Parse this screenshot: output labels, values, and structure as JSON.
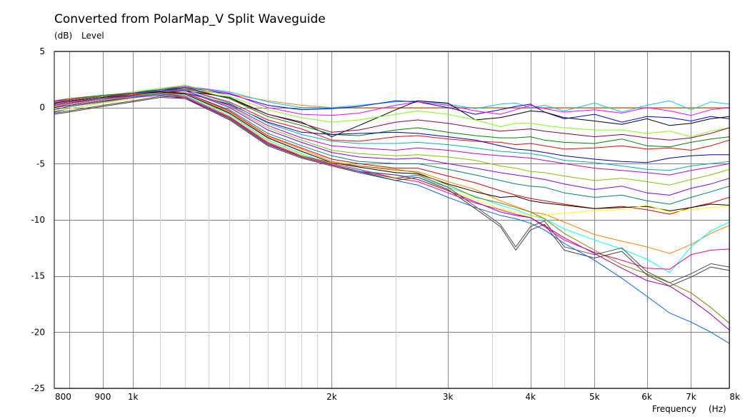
{
  "chart_data": {
    "type": "line",
    "title": "Converted from PolarMap_V Split Waveguide",
    "ylabel": "Level",
    "yunit": "(dB)",
    "xlabel": "Frequency",
    "xunit": "(Hz)",
    "xscale": "log",
    "xlim": [
      760,
      8000
    ],
    "ylim": [
      -25,
      5
    ],
    "grid": true,
    "legend": "none",
    "x_ticks": [
      {
        "value": 800,
        "label": "800"
      },
      {
        "value": 900,
        "label": "900"
      },
      {
        "value": 1000,
        "label": "1k"
      },
      {
        "value": 2000,
        "label": "2k"
      },
      {
        "value": 3000,
        "label": "3k"
      },
      {
        "value": 4000,
        "label": "4k"
      },
      {
        "value": 5000,
        "label": "5k"
      },
      {
        "value": 6000,
        "label": "6k"
      },
      {
        "value": 7000,
        "label": "7k"
      },
      {
        "value": 8000,
        "label": "8k"
      }
    ],
    "x_minor_ticks": [
      1100,
      1200,
      1300,
      1400,
      1500,
      1600,
      1700,
      1800,
      1900,
      2500,
      3500,
      4500
    ],
    "y_ticks": [
      5,
      0,
      -5,
      -10,
      -15,
      -20,
      -25
    ],
    "x": [
      760,
      800,
      900,
      1000,
      1100,
      1200,
      1400,
      1600,
      1800,
      2000,
      2200,
      2500,
      2700,
      3000,
      3300,
      3600,
      3800,
      4000,
      4200,
      4500,
      5000,
      5500,
      6000,
      6500,
      7000,
      7500,
      8000
    ],
    "series": [
      {
        "color": "#ff8000",
        "values": [
          0.6,
          0.8,
          1.0,
          1.2,
          1.5,
          1.6,
          1.2,
          0.6,
          0.2,
          0.0,
          0.0,
          0.0,
          0.0,
          0.0,
          0.0,
          0.0,
          0.0,
          0.0,
          0.0,
          0.0,
          0.0,
          0.0,
          0.0,
          0.0,
          0.0,
          0.0,
          0.0
        ]
      },
      {
        "color": "#00c8ff",
        "values": [
          0.4,
          0.6,
          0.9,
          1.3,
          1.7,
          1.9,
          1.4,
          0.5,
          0.0,
          0.0,
          0.2,
          0.5,
          0.6,
          0.3,
          -0.1,
          0.3,
          0.4,
          0.0,
          0.2,
          -0.3,
          0.4,
          -0.4,
          0.2,
          0.6,
          -0.2,
          0.5,
          0.3
        ]
      },
      {
        "color": "#0000ff",
        "values": [
          0.2,
          0.4,
          0.8,
          1.1,
          1.5,
          1.8,
          1.2,
          0.2,
          -0.2,
          -0.1,
          0.1,
          0.6,
          0.5,
          0.0,
          -0.6,
          -0.2,
          0.1,
          0.3,
          -0.4,
          -1.0,
          -0.6,
          -1.3,
          -0.8,
          -0.9,
          -1.2,
          -0.8,
          -1.0
        ]
      },
      {
        "color": "#ff00ff",
        "values": [
          0.3,
          0.5,
          0.8,
          1.2,
          1.6,
          1.9,
          1.3,
          0.0,
          -0.6,
          -0.7,
          -0.5,
          0.2,
          0.5,
          0.2,
          -0.3,
          -0.6,
          -0.2,
          0.2,
          -0.1,
          -0.4,
          -0.2,
          -0.5,
          0.0,
          -0.3,
          -0.7,
          -0.2,
          0.0
        ]
      },
      {
        "color": "#000000",
        "values": [
          -0.2,
          0.1,
          0.5,
          0.9,
          1.3,
          1.5,
          0.9,
          -0.6,
          -1.3,
          -2.6,
          -1.6,
          -0.2,
          0.6,
          0.4,
          -1.1,
          -0.9,
          -0.6,
          -0.3,
          -0.4,
          -0.9,
          -1.2,
          -1.5,
          -1.0,
          -1.6,
          -1.4,
          -1.0,
          -0.8
        ]
      },
      {
        "color": "#7fff00",
        "values": [
          0.5,
          0.7,
          1.0,
          1.4,
          1.7,
          2.0,
          1.0,
          -0.2,
          -0.9,
          -1.3,
          -1.1,
          -0.6,
          -0.3,
          -0.6,
          -1.1,
          -1.7,
          -1.4,
          -1.4,
          -1.6,
          -1.8,
          -2.0,
          -2.0,
          -2.3,
          -2.1,
          -2.6,
          -2.1,
          -1.8
        ]
      },
      {
        "color": "#8b0045",
        "values": [
          0.1,
          0.3,
          0.7,
          1.1,
          1.5,
          1.7,
          0.8,
          -0.6,
          -1.4,
          -2.2,
          -2.0,
          -1.3,
          -1.1,
          -1.4,
          -1.8,
          -2.1,
          -2.0,
          -1.9,
          -2.1,
          -2.3,
          -2.6,
          -2.4,
          -2.7,
          -2.9,
          -2.7,
          -2.3,
          -1.8
        ]
      },
      {
        "color": "#008000",
        "values": [
          0.6,
          0.8,
          1.1,
          1.3,
          1.6,
          1.8,
          0.8,
          -0.8,
          -1.6,
          -2.4,
          -2.5,
          -2.0,
          -1.8,
          -2.2,
          -2.5,
          -2.7,
          -2.7,
          -2.6,
          -2.9,
          -3.1,
          -3.2,
          -2.8,
          -3.4,
          -3.5,
          -3.1,
          -2.8,
          -2.6
        ]
      },
      {
        "color": "#ff0000",
        "values": [
          0.0,
          0.3,
          0.7,
          1.1,
          1.5,
          1.6,
          0.5,
          -1.1,
          -1.9,
          -2.9,
          -3.0,
          -2.6,
          -2.5,
          -2.8,
          -3.0,
          -3.1,
          -3.3,
          -3.2,
          -3.4,
          -3.7,
          -3.6,
          -3.4,
          -3.7,
          -3.6,
          -3.8,
          -3.4,
          -2.9
        ]
      },
      {
        "color": "#0000b4",
        "values": [
          -0.4,
          -0.1,
          0.4,
          0.8,
          1.2,
          1.3,
          0.3,
          -1.3,
          -2.2,
          -2.4,
          -2.3,
          -2.2,
          -2.3,
          -2.6,
          -2.9,
          -3.4,
          -3.7,
          -3.8,
          -4.0,
          -4.3,
          -4.6,
          -4.8,
          -4.9,
          -4.5,
          -4.3,
          -4.2,
          -4.2
        ]
      },
      {
        "color": "#00b0b0",
        "values": [
          0.4,
          0.6,
          0.9,
          1.2,
          1.5,
          1.6,
          0.4,
          -1.4,
          -2.4,
          -3.0,
          -3.2,
          -3.2,
          -3.1,
          -3.3,
          -3.6,
          -3.9,
          -4.0,
          -4.1,
          -4.3,
          -4.7,
          -4.9,
          -5.2,
          -5.5,
          -5.6,
          -5.2,
          -5.0,
          -4.8
        ]
      },
      {
        "color": "#c000c0",
        "values": [
          0.2,
          0.4,
          0.8,
          1.1,
          1.4,
          1.5,
          0.2,
          -1.6,
          -2.7,
          -3.4,
          -3.6,
          -3.8,
          -3.6,
          -3.8,
          -4.1,
          -4.3,
          -4.4,
          -4.5,
          -4.7,
          -5.0,
          -5.4,
          -5.6,
          -5.8,
          -6.0,
          -5.6,
          -5.3,
          -5.0
        ]
      },
      {
        "color": "#80c000",
        "values": [
          0.0,
          0.2,
          0.6,
          1.0,
          1.4,
          1.5,
          0.1,
          -1.8,
          -2.9,
          -3.8,
          -4.1,
          -4.3,
          -4.2,
          -4.4,
          -4.7,
          -5.2,
          -5.4,
          -5.7,
          -5.8,
          -6.1,
          -6.5,
          -6.3,
          -6.6,
          -6.9,
          -6.4,
          -6.0,
          -5.5
        ]
      },
      {
        "color": "#8000ff",
        "values": [
          0.6,
          0.7,
          1.0,
          1.3,
          1.5,
          1.5,
          0.0,
          -2.0,
          -3.1,
          -4.0,
          -4.4,
          -4.6,
          -4.5,
          -5.0,
          -5.4,
          -5.8,
          -6.0,
          -6.2,
          -6.4,
          -6.8,
          -7.3,
          -7.0,
          -7.6,
          -7.8,
          -7.2,
          -6.8,
          -6.3
        ]
      },
      {
        "color": "#008080",
        "values": [
          -0.2,
          0.1,
          0.5,
          0.9,
          1.3,
          1.3,
          -0.2,
          -2.3,
          -3.4,
          -4.3,
          -4.8,
          -5.0,
          -5.0,
          -5.5,
          -6.0,
          -6.5,
          -6.8,
          -7.0,
          -7.1,
          -7.6,
          -8.0,
          -7.8,
          -8.3,
          -8.6,
          -8.0,
          -7.5,
          -7.0
        ]
      },
      {
        "color": "#e00000",
        "values": [
          0.3,
          0.5,
          0.8,
          1.1,
          1.4,
          1.3,
          -0.3,
          -2.5,
          -3.6,
          -4.6,
          -5.0,
          -5.4,
          -5.4,
          -6.1,
          -6.7,
          -7.4,
          -7.8,
          -8.1,
          -8.3,
          -8.6,
          -9.0,
          -8.8,
          -9.1,
          -9.5,
          -8.9,
          -8.5,
          -8.0
        ]
      },
      {
        "color": "#ff8000",
        "values": [
          0.1,
          0.3,
          0.7,
          1.0,
          1.3,
          1.2,
          -0.4,
          -2.6,
          -3.7,
          -4.8,
          -5.2,
          -5.6,
          -5.7,
          -6.6,
          -7.3,
          -8.3,
          -8.8,
          -9.3,
          -9.5,
          -10.2,
          -11.3,
          -11.9,
          -12.4,
          -13.0,
          -12.2,
          -11.2,
          -10.5
        ]
      },
      {
        "color": "#000000",
        "values": [
          0.4,
          0.6,
          0.9,
          1.2,
          1.4,
          1.2,
          -0.5,
          -2.7,
          -3.9,
          -4.9,
          -5.3,
          -5.8,
          -5.9,
          -6.8,
          -7.5,
          -8.0,
          -7.9,
          -8.3,
          -8.5,
          -8.7,
          -9.0,
          -8.9,
          -8.8,
          -9.2,
          -8.9,
          -8.6,
          -8.7
        ]
      },
      {
        "color": "#00ffff",
        "values": [
          0.0,
          0.2,
          0.6,
          0.9,
          1.3,
          1.1,
          -0.6,
          -2.9,
          -4.1,
          -5.1,
          -5.6,
          -6.0,
          -6.2,
          -7.1,
          -7.9,
          -8.7,
          -9.1,
          -9.6,
          -9.9,
          -10.8,
          -11.8,
          -12.6,
          -13.5,
          -14.7,
          -12.4,
          -11.0,
          -10.2
        ]
      },
      {
        "color": "#ffff00",
        "values": [
          -0.3,
          -0.1,
          0.4,
          0.8,
          1.2,
          1.0,
          -0.7,
          -3.0,
          -4.2,
          -5.2,
          -5.7,
          -6.2,
          -6.4,
          -7.3,
          -8.2,
          -9.0,
          -9.3,
          -9.7,
          -9.6,
          -9.4,
          -9.2,
          -9.1,
          -8.7,
          -9.3,
          -9.1,
          -8.9,
          -8.8
        ]
      },
      {
        "color": "#ff0080",
        "values": [
          0.5,
          0.7,
          1.0,
          1.2,
          1.3,
          1.0,
          -0.8,
          -3.1,
          -4.3,
          -5.0,
          -5.5,
          -6.3,
          -6.6,
          -7.6,
          -8.5,
          -9.1,
          -9.5,
          -9.8,
          -10.6,
          -11.8,
          -12.9,
          -13.6,
          -14.3,
          -14.4,
          -13.1,
          -12.7,
          -12.6
        ]
      },
      {
        "color": "#0060ff",
        "values": [
          0.2,
          0.4,
          0.8,
          1.0,
          1.2,
          0.9,
          -0.9,
          -3.2,
          -4.4,
          -5.1,
          -5.7,
          -6.5,
          -6.9,
          -8.0,
          -8.9,
          -9.6,
          -9.9,
          -10.3,
          -10.9,
          -12.1,
          -13.6,
          -15.2,
          -16.8,
          -18.3,
          -19.1,
          -20.0,
          -21.0
        ]
      },
      {
        "color": "#808000",
        "values": [
          0.6,
          0.8,
          1.0,
          1.2,
          1.3,
          0.9,
          -1.0,
          -3.3,
          -4.3,
          -4.9,
          -5.2,
          -5.5,
          -5.8,
          -6.9,
          -8.0,
          -8.5,
          -8.9,
          -9.3,
          -9.9,
          -11.2,
          -12.7,
          -14.0,
          -14.8,
          -15.6,
          -16.5,
          -17.8,
          -19.2
        ]
      },
      {
        "color": "#404040",
        "values": [
          -0.6,
          -0.4,
          0.1,
          0.5,
          0.9,
          0.8,
          -1.1,
          -3.4,
          -4.5,
          -5.2,
          -5.8,
          -6.5,
          -6.2,
          -7.3,
          -9.0,
          -10.6,
          -12.7,
          -10.9,
          -10.4,
          -12.7,
          -13.4,
          -12.8,
          -14.9,
          -15.9,
          -15.1,
          -14.2,
          -14.5
        ]
      },
      {
        "color": "#505050",
        "values": [
          -0.5,
          -0.3,
          0.2,
          0.6,
          1.0,
          0.9,
          -1.0,
          -3.3,
          -4.4,
          -5.1,
          -5.7,
          -6.3,
          -6.0,
          -7.1,
          -8.8,
          -10.4,
          -12.4,
          -10.6,
          -10.1,
          -12.4,
          -13.1,
          -12.5,
          -14.6,
          -15.6,
          -14.8,
          -13.9,
          -14.2
        ]
      },
      {
        "color": "#a000a0",
        "values": [
          0.0,
          0.2,
          0.6,
          0.9,
          1.1,
          0.8,
          -0.9,
          -3.2,
          -4.4,
          -5.1,
          -5.7,
          -6.0,
          -6.4,
          -7.4,
          -8.4,
          -9.3,
          -9.6,
          -9.8,
          -10.5,
          -11.6,
          -13.0,
          -14.3,
          -15.4,
          -15.9,
          -17.1,
          -18.4,
          -19.8
        ]
      }
    ]
  }
}
